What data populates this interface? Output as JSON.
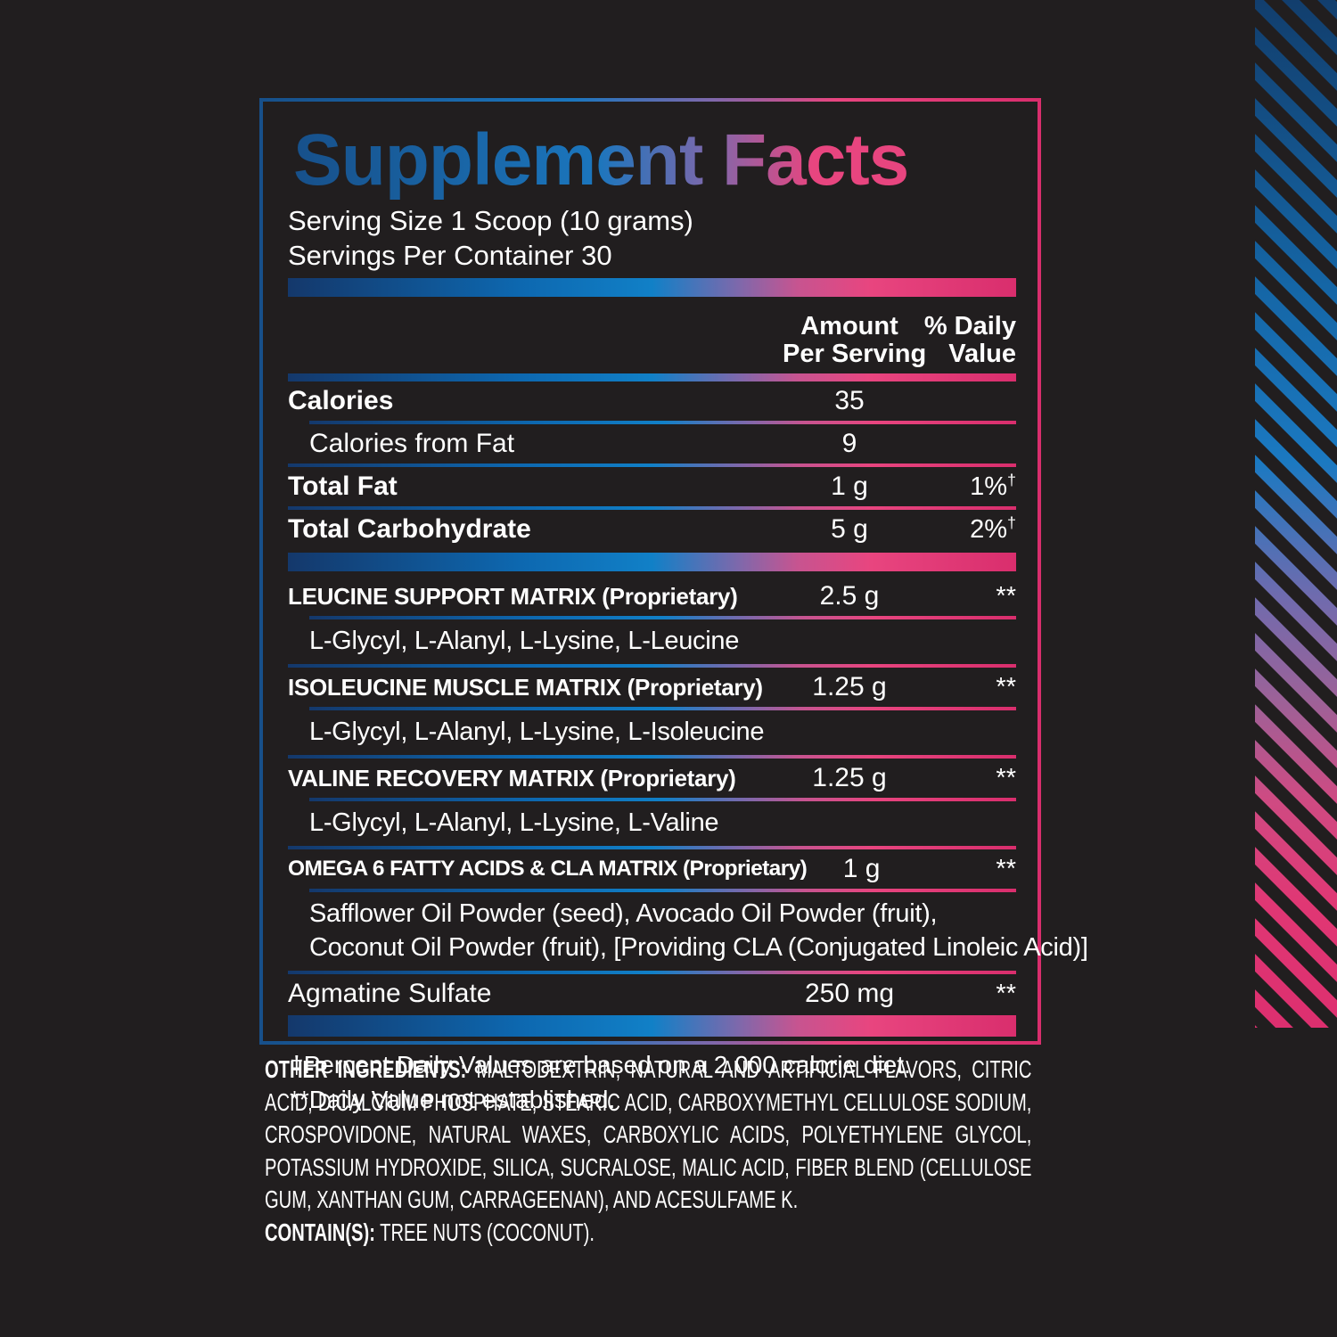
{
  "colors": {
    "background": "#211e1f",
    "text_white": "#ffffff",
    "blue_dark": "#17508a",
    "blue_bright": "#1b76bd",
    "purple": "#7f68ab",
    "pink": "#e8457f",
    "pink_deep": "#d92e6d",
    "grad_navy": "#14386b",
    "grad_blue_mid": "#0d68b0",
    "grad_blue_bright": "#1180c7",
    "grad_mauve": "#c75490"
  },
  "panel": {
    "title": "Supplement Facts",
    "serving_size": "Serving Size 1 Scoop (10 grams)",
    "servings_per_container": "Servings Per Container 30",
    "columns": {
      "amount_line1": "Amount",
      "amount_line2": "Per Serving",
      "dv_line1": "% Daily",
      "dv_line2": "Value"
    },
    "rows": [
      {
        "style": "main",
        "name": "Calories",
        "amount": "35",
        "dv": "",
        "sep": "indent"
      },
      {
        "style": "sub",
        "name": "Calories from Fat",
        "amount": "9",
        "dv": "",
        "sep": "full"
      },
      {
        "style": "main",
        "name": "Total Fat",
        "amount": "1 g",
        "dv": "1%",
        "dv_sup": "†",
        "sep": "full"
      },
      {
        "style": "main",
        "name": "Total Carbohydrate",
        "amount": "5 g",
        "dv": "2%",
        "dv_sup": "†",
        "sep": "bar"
      },
      {
        "style": "matrix",
        "name": "LEUCINE SUPPORT MATRIX (Proprietary)",
        "amount": "2.5 g",
        "dv": "**",
        "sep": "indent"
      },
      {
        "style": "ingredients",
        "lines": [
          "L-Glycyl, L-Alanyl, L-Lysine, L-Leucine"
        ],
        "sep": "full"
      },
      {
        "style": "matrix",
        "name": "ISOLEUCINE MUSCLE MATRIX (Proprietary)",
        "amount": "1.25 g",
        "dv": "**",
        "sep": "indent"
      },
      {
        "style": "ingredients",
        "lines": [
          "L-Glycyl, L-Alanyl, L-Lysine, L-Isoleucine"
        ],
        "sep": "full"
      },
      {
        "style": "matrix",
        "name": "VALINE RECOVERY MATRIX (Proprietary)",
        "amount": "1.25 g",
        "dv": "**",
        "sep": "indent"
      },
      {
        "style": "ingredients",
        "lines": [
          "L-Glycyl, L-Alanyl, L-Lysine, L-Valine"
        ],
        "sep": "full"
      },
      {
        "style": "matrix",
        "tight": true,
        "name": "OMEGA 6 FATTY ACIDS & CLA MATRIX (Proprietary)",
        "amount": "1 g",
        "dv": "**",
        "sep": "indent"
      },
      {
        "style": "ingredients",
        "lines": [
          "Safflower Oil Powder (seed), Avocado Oil Powder (fruit),",
          "Coconut Oil Powder (fruit), [Providing CLA (Conjugated Linoleic Acid)]"
        ],
        "sep": "full"
      },
      {
        "style": "plain",
        "name": "Agmatine Sulfate",
        "amount": "250 mg",
        "dv": "**",
        "sep": "none"
      }
    ],
    "footnotes": [
      "†Percent Daily Values are based on a 2,000 calorie diet.",
      "**Daily Value not established."
    ]
  },
  "other_ingredients": {
    "label": "OTHER INGREDIENTS:",
    "text": "MALTODEXTRIN, NATURAL AND ARTIFICIAL FLAVORS, CITRIC ACID, DICALCIUM PHOSPHATE, STEARIC ACID, CARBOXYMETHYL CELLULOSE SODIUM, CROSPOVIDONE, NATURAL WAXES, CARBOXYLIC ACIDS, POLYETHYLENE GLYCOL, POTASSIUM HYDROXIDE, SILICA, SUCRALOSE, MALIC ACID, FIBER BLEND (CELLULOSE GUM, XANTHAN GUM, CARRAGEENAN), AND ACESULFAME K.",
    "contains_label": "CONTAIN(S):",
    "contains_text": "TREE NUTS (COCONUT)."
  }
}
